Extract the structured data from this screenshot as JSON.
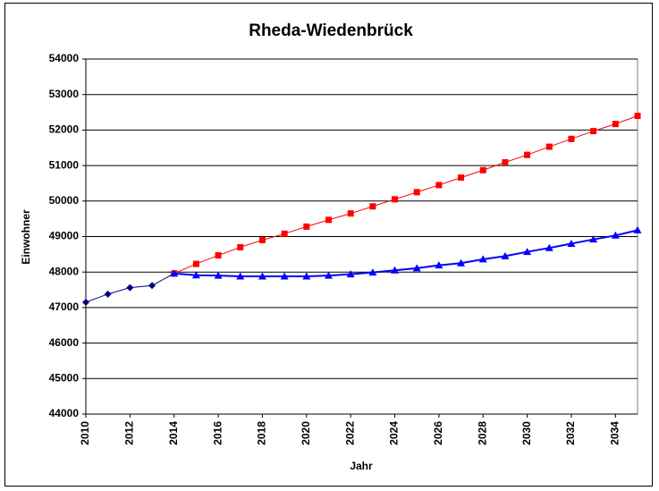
{
  "chart_data": {
    "type": "line",
    "title": "Rheda-Wiedenbrück",
    "x_label": "Jahr",
    "y_label": "Einwohner",
    "xlim": [
      2010,
      2035
    ],
    "xticks": [
      2010,
      2012,
      2014,
      2016,
      2018,
      2020,
      2022,
      2024,
      2026,
      2028,
      2030,
      2032,
      2034
    ],
    "ylim": [
      44000,
      54000
    ],
    "yticks": [
      44000,
      45000,
      46000,
      47000,
      48000,
      49000,
      50000,
      51000,
      52000,
      53000,
      54000
    ],
    "grid": true,
    "series": [
      {
        "color": "#000080",
        "marker": "diamond",
        "x": [
          2010,
          2011,
          2012,
          2013,
          2014
        ],
        "values": [
          47150,
          47380,
          47560,
          47620,
          47960
        ]
      },
      {
        "color": "#ff0000",
        "marker": "square",
        "x": [
          2014,
          2015,
          2016,
          2017,
          2018,
          2019,
          2020,
          2021,
          2022,
          2023,
          2024,
          2025,
          2026,
          2027,
          2028,
          2029,
          2030,
          2031,
          2032,
          2033,
          2034,
          2035
        ],
        "values": [
          47960,
          48230,
          48470,
          48700,
          48900,
          49080,
          49280,
          49470,
          49650,
          49850,
          50050,
          50250,
          50450,
          50660,
          50870,
          51090,
          51300,
          51530,
          51750,
          51970,
          52170,
          52400
        ]
      },
      {
        "color": "#0000ff",
        "marker": "triangle",
        "x": [
          2014,
          2015,
          2016,
          2017,
          2018,
          2019,
          2020,
          2021,
          2022,
          2023,
          2024,
          2025,
          2026,
          2027,
          2028,
          2029,
          2030,
          2031,
          2032,
          2033,
          2034,
          2035
        ],
        "values": [
          47960,
          47910,
          47900,
          47880,
          47880,
          47880,
          47880,
          47900,
          47940,
          47990,
          48050,
          48110,
          48190,
          48250,
          48360,
          48450,
          48570,
          48680,
          48800,
          48920,
          49030,
          49180
        ]
      }
    ]
  }
}
